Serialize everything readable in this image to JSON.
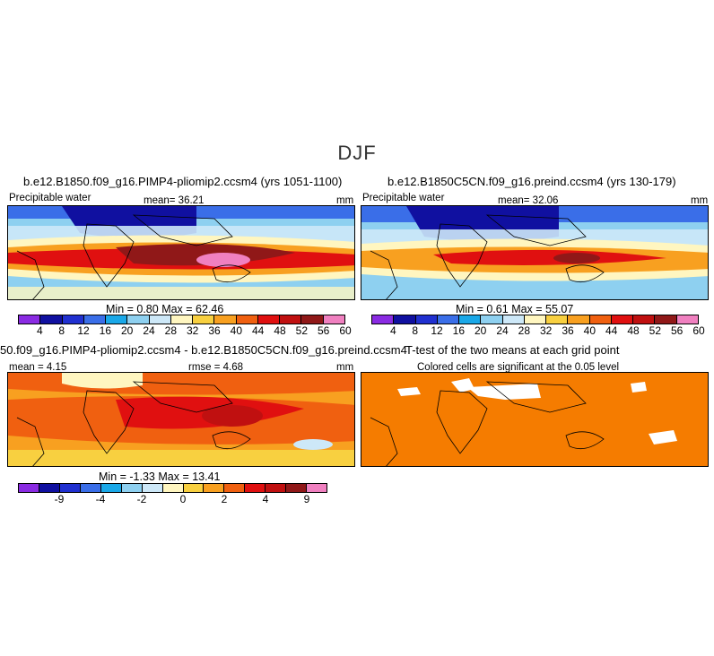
{
  "figure": {
    "season": "DJF"
  },
  "panel1": {
    "title": "b.e12.B1850.f09_g16.PIMP4-pliomip2.ccsm4 (yrs 1051-1100)",
    "variable": "Precipitable water",
    "mean_text": "mean=   36.21",
    "units": "mm",
    "minmax": "Min =     0.80  Max =    62.46"
  },
  "panel2": {
    "title": "b.e12.B1850C5CN.f09_g16.preind.ccsm4 (yrs 130-179)",
    "variable": "Precipitable water",
    "mean_text": "mean=   32.06",
    "units": "mm",
    "minmax": "Min =     0.61  Max =    55.07"
  },
  "panel3": {
    "title": "50.f09_g16.PIMP4-pliomip2.ccsm4 - b.e12.B1850C5CN.f09_g16.preind.ccsm4",
    "mean_text": "mean =   4.15",
    "rmse_text": "rmse =   4.68",
    "units": "mm",
    "minmax": "Min =   -1.33  Max =   13.41"
  },
  "panel4": {
    "title": "T-test of the two means at each grid point",
    "subtitle": "Colored cells are significant at the 0.05 level"
  },
  "colorbar_abs": {
    "colors": [
      "#8a2be2",
      "#1010a0",
      "#2030d0",
      "#3a6ee8",
      "#1aa8e8",
      "#8ed0f0",
      "#cde8f8",
      "#fff6c0",
      "#f8d040",
      "#f8a020",
      "#f06010",
      "#e01010",
      "#c01010",
      "#901818",
      "#f080c0"
    ],
    "labels": [
      "4",
      "8",
      "12",
      "16",
      "20",
      "24",
      "28",
      "32",
      "36",
      "40",
      "44",
      "48",
      "52",
      "56",
      "60"
    ]
  },
  "colorbar_diff": {
    "colors": [
      "#8a2be2",
      "#1010a0",
      "#2030d0",
      "#3a6ee8",
      "#1aa8e8",
      "#8ed0f0",
      "#cde8f8",
      "#fff6c0",
      "#f8d040",
      "#f8a020",
      "#f06010",
      "#e01010",
      "#c01010",
      "#901818",
      "#f080c0"
    ],
    "labels": [
      "-9",
      "-4",
      "-2",
      "0",
      "2",
      "4",
      "9"
    ]
  }
}
